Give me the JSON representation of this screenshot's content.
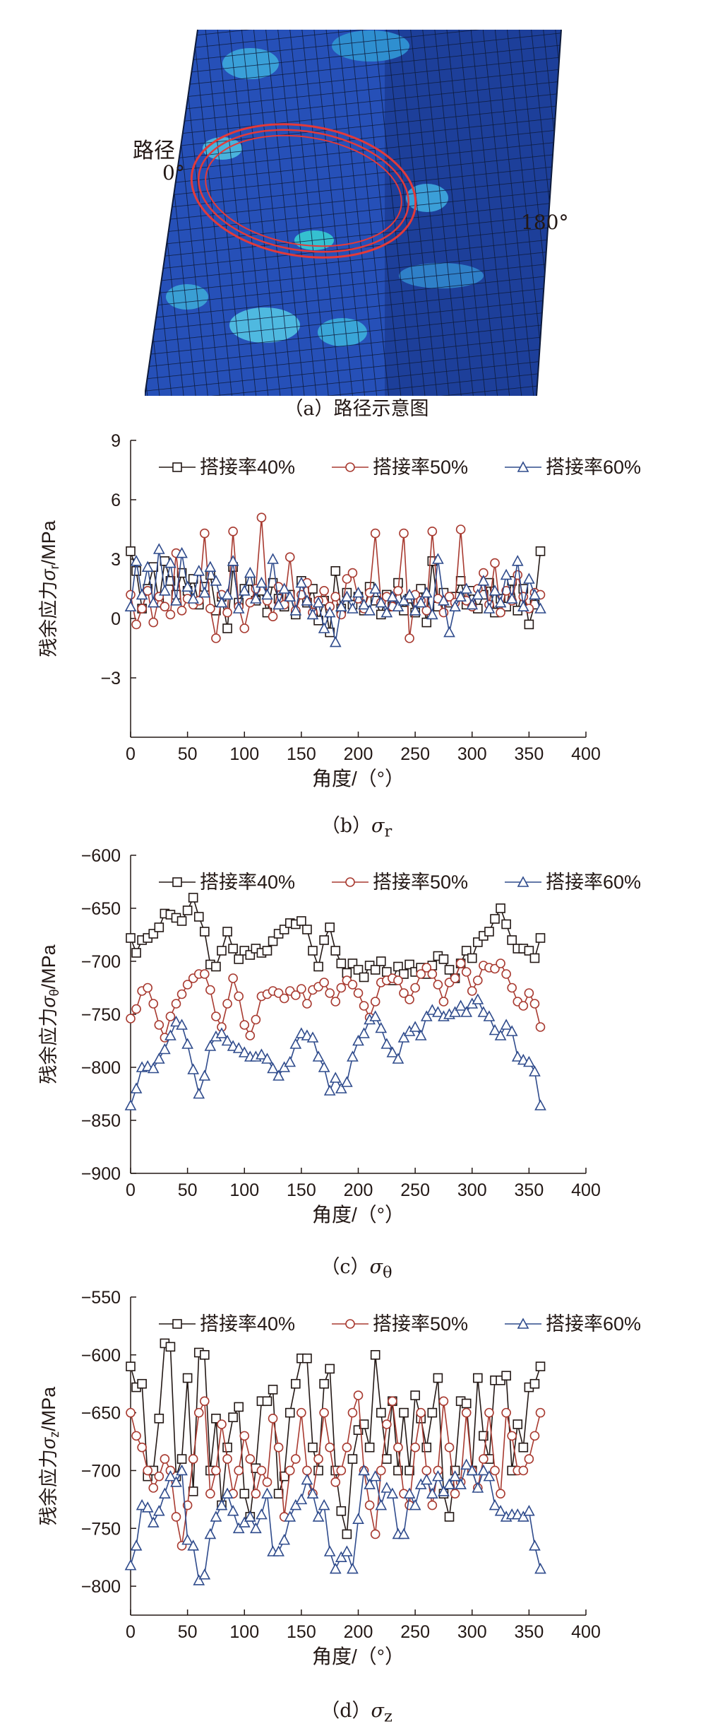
{
  "figure_a": {
    "label_path": "路径",
    "label_0": "0°",
    "label_180": "180°",
    "caption": "（a）路径示意图"
  },
  "colors": {
    "s40": "#231815",
    "s50": "#a83a30",
    "s60": "#2f4b8c",
    "shell": "#1f4bb0",
    "ring": "#e23a3a"
  },
  "chart_data": [
    {
      "type": "line",
      "caption_prefix": "（b）",
      "caption_symbol": "σ",
      "caption_sub": "r",
      "xlabel": "角度/（°）",
      "ylabel_prefix": "残余应力",
      "ylabel_symbol": "σ",
      "ylabel_sub": "r",
      "ylabel_unit": "/MPa",
      "xlim": [
        0,
        400
      ],
      "ylim": [
        -6,
        9
      ],
      "xticks": [
        0,
        50,
        100,
        150,
        200,
        250,
        300,
        350,
        400
      ],
      "yticks": [
        -3,
        0,
        3,
        6,
        9
      ],
      "grid": false,
      "legend_position": "top",
      "x": [
        0,
        5,
        10,
        15,
        20,
        25,
        30,
        35,
        40,
        45,
        50,
        55,
        60,
        65,
        70,
        75,
        80,
        85,
        90,
        95,
        100,
        105,
        110,
        115,
        120,
        125,
        130,
        135,
        140,
        145,
        150,
        155,
        160,
        165,
        170,
        175,
        180,
        185,
        190,
        195,
        200,
        205,
        210,
        215,
        220,
        225,
        230,
        235,
        240,
        245,
        250,
        255,
        260,
        265,
        270,
        275,
        280,
        285,
        290,
        295,
        300,
        305,
        310,
        315,
        320,
        325,
        330,
        335,
        340,
        345,
        350,
        355,
        360
      ],
      "series": [
        {
          "name": "搭接率40%",
          "marker": "square",
          "values": [
            3.4,
            2.4,
            0.5,
            1.5,
            2.6,
            0.8,
            2.9,
            1.9,
            1.2,
            2.3,
            1.4,
            2.0,
            0.7,
            1.6,
            2.2,
            0.4,
            1.1,
            -0.5,
            2.6,
            0.8,
            1.5,
            1.9,
            0.9,
            1.4,
            0.3,
            1.8,
            1.0,
            0.6,
            1.2,
            0.2,
            1.9,
            0.8,
            1.5,
            -0.1,
            0.9,
            -0.7,
            2.4,
            0.5,
            1.3,
            0.7,
            1.1,
            0.4,
            1.6,
            0.9,
            0.2,
            1.2,
            0.6,
            1.8,
            0.4,
            1.0,
            0.3,
            1.5,
            -0.2,
            2.9,
            0.6,
            1.3,
            0.8,
            1.1,
            1.9,
            0.7,
            1.4,
            0.5,
            1.2,
            1.8,
            0.3,
            1.0,
            0.6,
            1.9,
            0.4,
            1.5,
            -0.3,
            0.7,
            3.4
          ]
        },
        {
          "name": "搭接率50%",
          "marker": "circle",
          "values": [
            1.2,
            -0.3,
            0.5,
            1.4,
            -0.2,
            1.1,
            0.6,
            0.2,
            3.3,
            0.4,
            1.0,
            0.7,
            0.9,
            4.3,
            0.5,
            -1.0,
            1.2,
            0.3,
            4.4,
            0.6,
            -0.5,
            0.8,
            1.5,
            5.1,
            0.9,
            0.1,
            1.6,
            0.7,
            3.1,
            0.4,
            1.2,
            1.8,
            0.3,
            0.9,
            1.4,
            0.6,
            1.1,
            0.2,
            2.0,
            2.3,
            1.0,
            0.5,
            1.3,
            4.3,
            0.8,
            1.1,
            0.6,
            1.4,
            4.3,
            -1.0,
            1.2,
            0.9,
            0.4,
            4.4,
            1.0,
            0.3,
            1.1,
            0.8,
            4.5,
            0.9,
            0.6,
            1.5,
            2.3,
            0.7,
            2.8,
            0.3,
            1.4,
            0.9,
            2.2,
            1.1,
            0.5,
            1.3,
            1.2
          ]
        },
        {
          "name": "搭接率60%",
          "marker": "triangle",
          "values": [
            0.6,
            2.9,
            1.2,
            2.6,
            0.8,
            3.5,
            1.4,
            2.8,
            0.9,
            3.3,
            1.6,
            1.0,
            2.4,
            1.3,
            2.6,
            1.9,
            0.8,
            1.2,
            2.9,
            0.5,
            1.4,
            2.3,
            1.0,
            1.8,
            1.2,
            3.0,
            0.7,
            1.5,
            1.1,
            0.4,
            1.8,
            0.9,
            0.2,
            0.8,
            -0.5,
            0.3,
            -1.2,
            0.6,
            1.1,
            0.5,
            1.3,
            0.7,
            0.4,
            1.5,
            0.8,
            0.3,
            1.1,
            0.6,
            0.9,
            1.2,
            0.4,
            0.8,
            1.3,
            0.2,
            3.0,
            0.9,
            -0.7,
            0.6,
            1.1,
            1.5,
            0.7,
            1.2,
            1.9,
            0.5,
            1.4,
            0.8,
            2.2,
            1.0,
            2.9,
            0.6,
            2.0,
            1.2,
            0.5
          ]
        }
      ]
    },
    {
      "type": "line",
      "caption_prefix": "（c）",
      "caption_symbol": "σ",
      "caption_sub": "θ",
      "xlabel": "角度/（°）",
      "ylabel_prefix": "残余应力",
      "ylabel_symbol": "σ",
      "ylabel_sub": "θ",
      "ylabel_unit": "/MPa",
      "xlim": [
        0,
        400
      ],
      "ylim": [
        -900,
        -600
      ],
      "xticks": [
        0,
        50,
        100,
        150,
        200,
        250,
        300,
        350,
        400
      ],
      "yticks": [
        -900,
        -850,
        -800,
        -750,
        -700,
        -650,
        -600
      ],
      "grid": false,
      "legend_position": "top",
      "x": [
        0,
        5,
        10,
        15,
        20,
        25,
        30,
        35,
        40,
        45,
        50,
        55,
        60,
        65,
        70,
        75,
        80,
        85,
        90,
        95,
        100,
        105,
        110,
        115,
        120,
        125,
        130,
        135,
        140,
        145,
        150,
        155,
        160,
        165,
        170,
        175,
        180,
        185,
        190,
        195,
        200,
        205,
        210,
        215,
        220,
        225,
        230,
        235,
        240,
        245,
        250,
        255,
        260,
        265,
        270,
        275,
        280,
        285,
        290,
        295,
        300,
        305,
        310,
        315,
        320,
        325,
        330,
        335,
        340,
        345,
        350,
        355,
        360
      ],
      "series": [
        {
          "name": "搭接率40%",
          "marker": "square",
          "values": [
            -678,
            -692,
            -680,
            -678,
            -674,
            -668,
            -655,
            -656,
            -659,
            -662,
            -652,
            -640,
            -658,
            -672,
            -703,
            -705,
            -690,
            -672,
            -688,
            -698,
            -690,
            -694,
            -688,
            -692,
            -690,
            -681,
            -674,
            -670,
            -664,
            -665,
            -662,
            -670,
            -690,
            -705,
            -680,
            -668,
            -690,
            -702,
            -711,
            -702,
            -708,
            -715,
            -704,
            -708,
            -700,
            -710,
            -718,
            -705,
            -712,
            -703,
            -710,
            -706,
            -712,
            -704,
            -695,
            -698,
            -708,
            -716,
            -702,
            -690,
            -697,
            -682,
            -676,
            -672,
            -660,
            -650,
            -665,
            -680,
            -688,
            -688,
            -690,
            -697,
            -678
          ]
        },
        {
          "name": "搭接率50%",
          "marker": "circle",
          "values": [
            -754,
            -745,
            -728,
            -725,
            -740,
            -760,
            -772,
            -752,
            -740,
            -731,
            -722,
            -716,
            -712,
            -712,
            -727,
            -752,
            -762,
            -740,
            -716,
            -733,
            -760,
            -770,
            -755,
            -733,
            -731,
            -728,
            -730,
            -735,
            -728,
            -732,
            -726,
            -740,
            -727,
            -724,
            -720,
            -730,
            -738,
            -725,
            -718,
            -722,
            -730,
            -742,
            -753,
            -738,
            -720,
            -718,
            -716,
            -718,
            -730,
            -736,
            -725,
            -712,
            -706,
            -712,
            -722,
            -738,
            -720,
            -716,
            -702,
            -710,
            -728,
            -718,
            -704,
            -706,
            -707,
            -702,
            -712,
            -725,
            -738,
            -742,
            -730,
            -740,
            -762
          ]
        },
        {
          "name": "搭接率60%",
          "marker": "triangle",
          "values": [
            -836,
            -820,
            -800,
            -799,
            -801,
            -792,
            -783,
            -770,
            -757,
            -760,
            -778,
            -802,
            -825,
            -808,
            -780,
            -771,
            -768,
            -775,
            -780,
            -782,
            -786,
            -790,
            -790,
            -788,
            -792,
            -801,
            -808,
            -800,
            -795,
            -778,
            -768,
            -770,
            -772,
            -790,
            -800,
            -822,
            -810,
            -820,
            -814,
            -790,
            -775,
            -768,
            -755,
            -752,
            -763,
            -778,
            -786,
            -792,
            -772,
            -766,
            -762,
            -770,
            -752,
            -746,
            -748,
            -752,
            -750,
            -748,
            -742,
            -748,
            -740,
            -736,
            -748,
            -752,
            -765,
            -770,
            -760,
            -766,
            -790,
            -793,
            -795,
            -804,
            -836
          ]
        }
      ]
    },
    {
      "type": "line",
      "caption_prefix": "（d）",
      "caption_symbol": "σ",
      "caption_sub": "z",
      "xlabel": "角度/（°）",
      "ylabel_prefix": "残余应力",
      "ylabel_symbol": "σ",
      "ylabel_sub": "z",
      "ylabel_unit": "/MPa",
      "xlim": [
        0,
        400
      ],
      "ylim": [
        -825,
        -550
      ],
      "xticks": [
        0,
        50,
        100,
        150,
        200,
        250,
        300,
        350,
        400
      ],
      "yticks": [
        -800,
        -750,
        -700,
        -650,
        -600,
        -550
      ],
      "grid": false,
      "legend_position": "top",
      "x": [
        0,
        5,
        10,
        15,
        20,
        25,
        30,
        35,
        40,
        45,
        50,
        55,
        60,
        65,
        70,
        75,
        80,
        85,
        90,
        95,
        100,
        105,
        110,
        115,
        120,
        125,
        130,
        135,
        140,
        145,
        150,
        155,
        160,
        165,
        170,
        175,
        180,
        185,
        190,
        195,
        200,
        205,
        210,
        215,
        220,
        225,
        230,
        235,
        240,
        245,
        250,
        255,
        260,
        265,
        270,
        275,
        280,
        285,
        290,
        295,
        300,
        305,
        310,
        315,
        320,
        325,
        330,
        335,
        340,
        345,
        350,
        355,
        360
      ],
      "series": [
        {
          "name": "搭接率40%",
          "marker": "square",
          "values": [
            -610,
            -628,
            -625,
            -705,
            -700,
            -655,
            -590,
            -593,
            -705,
            -690,
            -620,
            -718,
            -598,
            -600,
            -700,
            -655,
            -730,
            -680,
            -654,
            -645,
            -720,
            -740,
            -698,
            -640,
            -640,
            -630,
            -720,
            -705,
            -650,
            -625,
            -603,
            -603,
            -680,
            -700,
            -625,
            -612,
            -700,
            -735,
            -755,
            -690,
            -665,
            -660,
            -680,
            -600,
            -650,
            -690,
            -640,
            -700,
            -650,
            -700,
            -635,
            -655,
            -680,
            -650,
            -620,
            -720,
            -740,
            -700,
            -640,
            -642,
            -700,
            -620,
            -670,
            -690,
            -622,
            -622,
            -618,
            -700,
            -660,
            -680,
            -628,
            -625,
            -610
          ]
        },
        {
          "name": "搭接率50%",
          "marker": "circle",
          "values": [
            -650,
            -670,
            -680,
            -700,
            -715,
            -705,
            -690,
            -700,
            -740,
            -765,
            -730,
            -690,
            -650,
            -640,
            -720,
            -700,
            -660,
            -690,
            -720,
            -700,
            -670,
            -690,
            -720,
            -700,
            -710,
            -655,
            -680,
            -740,
            -700,
            -690,
            -650,
            -700,
            -720,
            -690,
            -650,
            -680,
            -710,
            -700,
            -680,
            -650,
            -635,
            -700,
            -730,
            -755,
            -700,
            -660,
            -640,
            -680,
            -720,
            -730,
            -680,
            -650,
            -700,
            -730,
            -700,
            -640,
            -680,
            -720,
            -710,
            -650,
            -700,
            -715,
            -690,
            -650,
            -700,
            -720,
            -650,
            -670,
            -700,
            -700,
            -690,
            -670,
            -650
          ]
        },
        {
          "name": "搭接率60%",
          "marker": "triangle",
          "values": [
            -782,
            -765,
            -730,
            -732,
            -745,
            -735,
            -720,
            -705,
            -710,
            -700,
            -760,
            -765,
            -795,
            -790,
            -755,
            -740,
            -730,
            -720,
            -735,
            -750,
            -745,
            -740,
            -750,
            -738,
            -720,
            -770,
            -770,
            -760,
            -740,
            -730,
            -725,
            -708,
            -720,
            -740,
            -730,
            -770,
            -785,
            -775,
            -770,
            -785,
            -742,
            -700,
            -712,
            -705,
            -730,
            -715,
            -720,
            -755,
            -755,
            -720,
            -730,
            -712,
            -708,
            -720,
            -705,
            -718,
            -712,
            -705,
            -712,
            -695,
            -700,
            -715,
            -700,
            -705,
            -730,
            -735,
            -740,
            -738,
            -738,
            -740,
            -735,
            -765,
            -785
          ]
        }
      ]
    }
  ]
}
